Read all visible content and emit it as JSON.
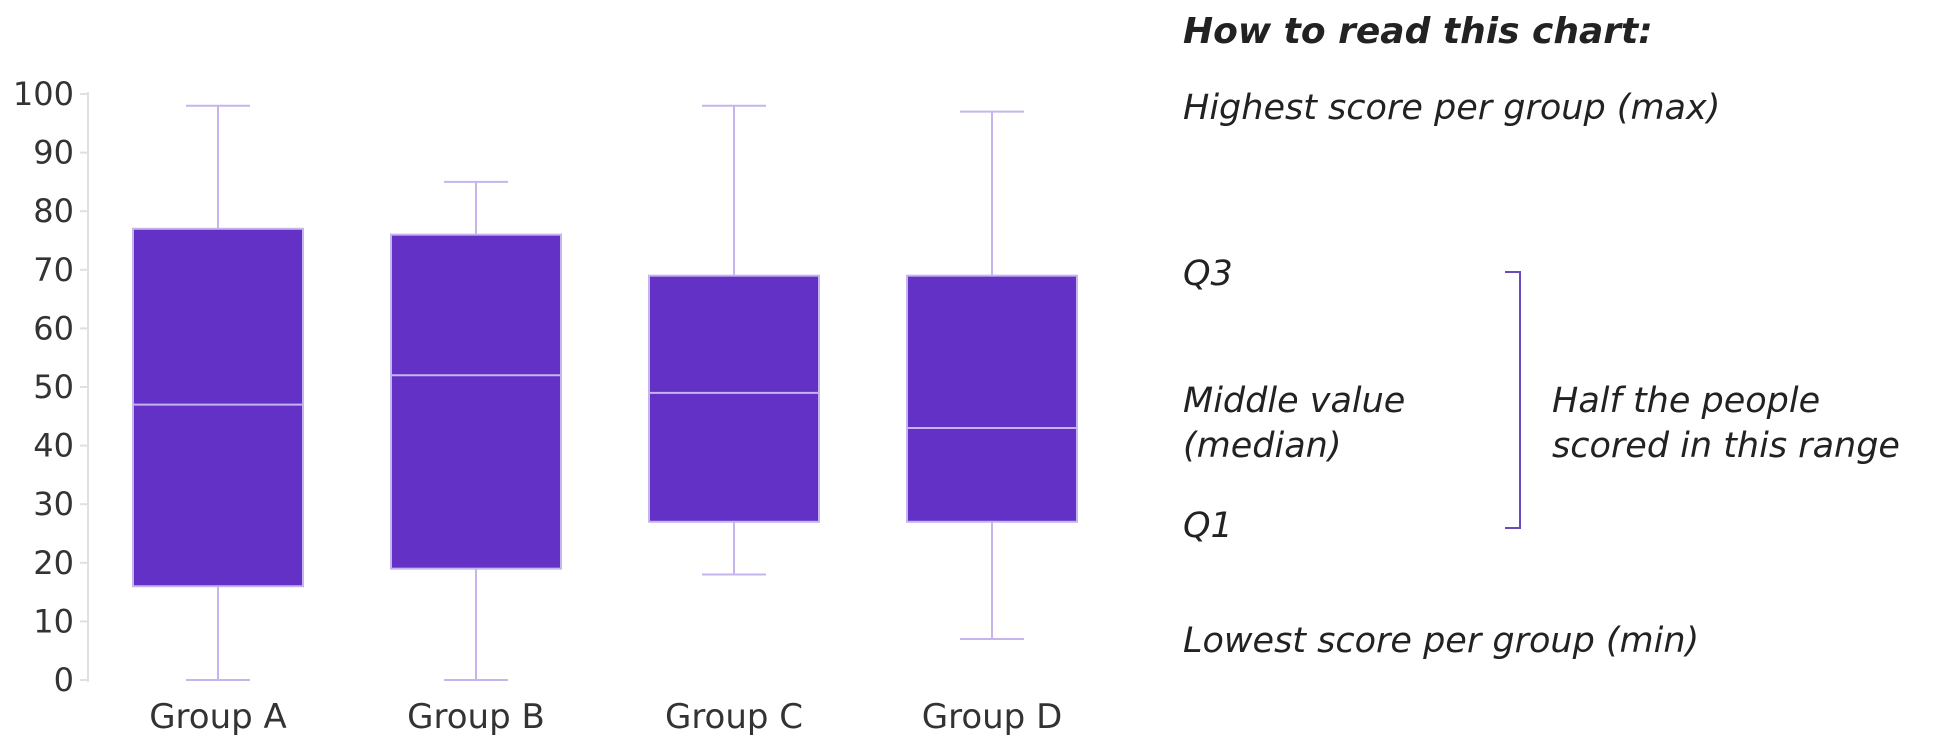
{
  "chart_data": {
    "type": "box",
    "categories": [
      "Group A",
      "Group B",
      "Group C",
      "Group D"
    ],
    "boxes": [
      {
        "category": "Group A",
        "min": 0,
        "q1": 16,
        "median": 47,
        "q3": 77,
        "max": 98
      },
      {
        "category": "Group B",
        "min": 0,
        "q1": 19,
        "median": 52,
        "q3": 76,
        "max": 85
      },
      {
        "category": "Group C",
        "min": 18,
        "q1": 27,
        "median": 49,
        "q3": 69,
        "max": 98
      },
      {
        "category": "Group D",
        "min": 7,
        "q1": 27,
        "median": 43,
        "q3": 69,
        "max": 97
      }
    ],
    "ylim": [
      0,
      100
    ],
    "yticks": [
      0,
      10,
      20,
      30,
      40,
      50,
      60,
      70,
      80,
      90,
      100
    ],
    "grid": false,
    "colors": {
      "box_fill": "#6331C6",
      "box_edge": "#C6B4EE",
      "axis": "#E0E0E0",
      "bracket": "#6A4BB8"
    }
  },
  "guide": {
    "title": "How to read this chart:",
    "max_label": "Highest score per group (max)",
    "q3_label": "Q3",
    "median_label_line1": "Middle value",
    "median_label_line2": "(median)",
    "q1_label": "Q1",
    "min_label": "Lowest score per group (min)",
    "range_label_line1": "Half the people",
    "range_label_line2": "scored in this range"
  }
}
